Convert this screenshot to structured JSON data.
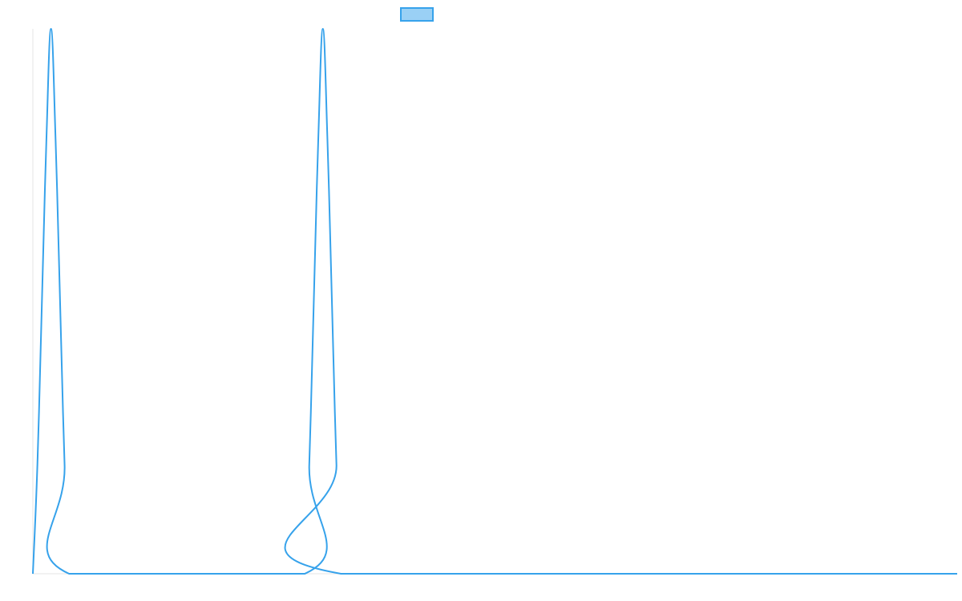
{
  "chart_data": {
    "type": "line",
    "title": "",
    "xlabel": "",
    "ylabel": "",
    "grid": false,
    "legend_placement": "top-center",
    "series": [
      {
        "color": "#36a2eb",
        "fill_color": "#9ad0f5",
        "points": [
          [
            0,
            0
          ],
          [
            0.5,
            0.2
          ],
          [
            1,
            0.5
          ],
          [
            1.5,
            0.8
          ],
          [
            2,
            1
          ],
          [
            2.5,
            0.8
          ],
          [
            3,
            0.5
          ],
          [
            3.5,
            0.2
          ],
          [
            4,
            0
          ],
          [
            30,
            0
          ],
          [
            30.5,
            0.2
          ],
          [
            31,
            0.5
          ],
          [
            31.5,
            0.8
          ],
          [
            32,
            1
          ],
          [
            32.5,
            0.8
          ],
          [
            33,
            0.5
          ],
          [
            33.5,
            0.2
          ],
          [
            34,
            0
          ],
          [
            102,
            0
          ]
        ]
      }
    ],
    "xlim": [
      0,
      102
    ],
    "ylim": [
      0,
      1
    ]
  }
}
